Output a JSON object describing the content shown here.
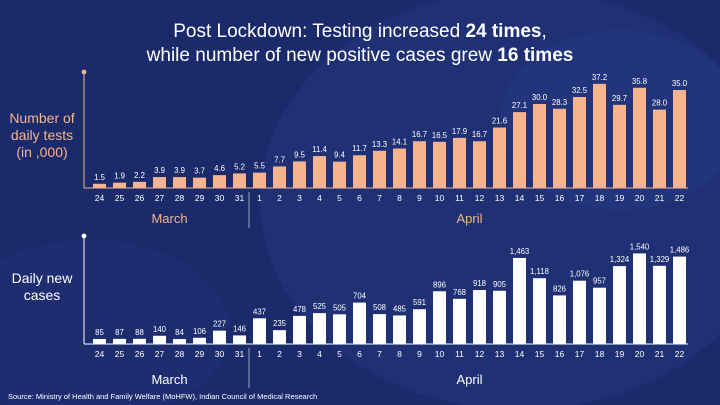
{
  "title": {
    "line1_prefix": "Post Lockdown: Testing increased ",
    "line1_bold": "24 times",
    "line1_suffix": ",",
    "line2_prefix": "while number of new positive cases grew ",
    "line2_bold": "16 times"
  },
  "source": "Source: Ministry of Health and Family Welfare (MoHFW), Indian Council of Medical Research",
  "colors": {
    "background": "#1b2a6b",
    "tests_bar": "#f5b48f",
    "cases_bar": "#ffffff",
    "axis_label_tests": "#f5b48f",
    "text": "#ffffff"
  },
  "chart_data": [
    {
      "type": "bar",
      "title": "",
      "ylabel": "Number of daily tests (in ,000)",
      "ylabel_lines": [
        "Number of",
        "daily tests",
        "(in ,000)"
      ],
      "categories": [
        "24",
        "25",
        "26",
        "27",
        "28",
        "29",
        "30",
        "31",
        "1",
        "2",
        "3",
        "4",
        "5",
        "6",
        "7",
        "8",
        "9",
        "10",
        "11",
        "12",
        "13",
        "14",
        "15",
        "16",
        "17",
        "18",
        "19",
        "20",
        "21",
        "22"
      ],
      "values": [
        1.5,
        1.9,
        2.2,
        3.9,
        3.9,
        3.7,
        4.6,
        5.2,
        5.5,
        7.7,
        9.5,
        11.4,
        9.4,
        11.7,
        13.3,
        14.1,
        16.7,
        16.5,
        17.9,
        16.7,
        21.6,
        27.1,
        30.0,
        28.3,
        32.5,
        37.2,
        29.7,
        35.8,
        28.0,
        35.0
      ],
      "value_labels": [
        "1.5",
        "1.9",
        "2.2",
        "3.9",
        "3.9",
        "3.7",
        "4.6",
        "5.2",
        "5.5",
        "7.7",
        "9.5",
        "11.4",
        "9.4",
        "11.7",
        "13.3",
        "14.1",
        "16.7",
        "16.5",
        "17.9",
        "16.7",
        "21.6",
        "27.1",
        "30.0",
        "28.3",
        "32.5",
        "37.2",
        "29.7",
        "35.8",
        "28.0",
        "35.0"
      ],
      "ylim": [
        0,
        40
      ],
      "months": [
        {
          "label": "March",
          "from": 0,
          "to": 7
        },
        {
          "label": "April",
          "from": 8,
          "to": 29
        }
      ]
    },
    {
      "type": "bar",
      "title": "",
      "ylabel": "Daily new cases",
      "ylabel_lines": [
        "Daily new",
        "cases"
      ],
      "categories": [
        "24",
        "25",
        "26",
        "27",
        "28",
        "29",
        "30",
        "31",
        "1",
        "2",
        "3",
        "4",
        "5",
        "6",
        "7",
        "8",
        "9",
        "10",
        "11",
        "12",
        "13",
        "14",
        "15",
        "16",
        "17",
        "18",
        "19",
        "20",
        "21",
        "22"
      ],
      "values": [
        85,
        87,
        88,
        140,
        84,
        106,
        227,
        146,
        437,
        235,
        478,
        525,
        505,
        704,
        508,
        485,
        591,
        896,
        768,
        918,
        905,
        1463,
        1118,
        826,
        1076,
        957,
        1324,
        1540,
        1329,
        1486
      ],
      "value_labels": [
        "85",
        "87",
        "88",
        "140",
        "84",
        "106",
        "227",
        "146",
        "437",
        "235",
        "478",
        "525",
        "505",
        "704",
        "508",
        "485",
        "591",
        "896",
        "768",
        "918",
        "905",
        "1,463",
        "1,118",
        "826",
        "1,076",
        "957",
        "1,324",
        "1,540",
        "1,329",
        "1,486"
      ],
      "ylim": [
        0,
        1700
      ],
      "months": [
        {
          "label": "March",
          "from": 0,
          "to": 7
        },
        {
          "label": "April",
          "from": 8,
          "to": 29
        }
      ]
    }
  ]
}
